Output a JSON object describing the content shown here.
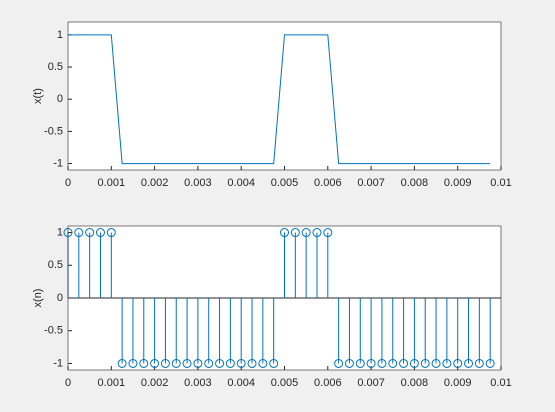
{
  "chart_data": [
    {
      "type": "line",
      "ylabel": "x(t)",
      "color": "#0072bd",
      "x": [
        0,
        0.00025,
        0.0005,
        0.00075,
        0.001,
        0.00125,
        0.0015,
        0.00175,
        0.002,
        0.00225,
        0.0025,
        0.00275,
        0.003,
        0.00325,
        0.0035,
        0.00375,
        0.004,
        0.00425,
        0.0045,
        0.00475,
        0.005,
        0.00525,
        0.0055,
        0.00575,
        0.006,
        0.00625,
        0.0065,
        0.00675,
        0.007,
        0.00725,
        0.0075,
        0.00775,
        0.008,
        0.00825,
        0.0085,
        0.00875,
        0.009,
        0.00925,
        0.0095,
        0.00975
      ],
      "values": [
        1,
        1,
        1,
        1,
        1,
        -1,
        -1,
        -1,
        -1,
        -1,
        -1,
        -1,
        -1,
        -1,
        -1,
        -1,
        -1,
        -1,
        -1,
        -1,
        1,
        1,
        1,
        1,
        1,
        -1,
        -1,
        -1,
        -1,
        -1,
        -1,
        -1,
        -1,
        -1,
        -1,
        -1,
        -1,
        -1,
        -1,
        -1
      ],
      "xlim": [
        0,
        0.01
      ],
      "xticks": [
        0,
        0.001,
        0.002,
        0.003,
        0.004,
        0.005,
        0.006,
        0.007,
        0.008,
        0.009,
        0.01
      ],
      "ylim": [
        -1.1,
        1.2
      ],
      "yticks": [
        -1,
        -0.5,
        0,
        0.5,
        1
      ]
    },
    {
      "type": "stem",
      "ylabel": "x(n)",
      "color": "#0072bd",
      "x": [
        0,
        0.00025,
        0.0005,
        0.00075,
        0.001,
        0.00125,
        0.0015,
        0.00175,
        0.002,
        0.00225,
        0.0025,
        0.00275,
        0.003,
        0.00325,
        0.0035,
        0.00375,
        0.004,
        0.00425,
        0.0045,
        0.00475,
        0.005,
        0.00525,
        0.0055,
        0.00575,
        0.006,
        0.00625,
        0.0065,
        0.00675,
        0.007,
        0.00725,
        0.0075,
        0.00775,
        0.008,
        0.00825,
        0.0085,
        0.00875,
        0.009,
        0.00925,
        0.0095,
        0.00975
      ],
      "values": [
        1,
        1,
        1,
        1,
        1,
        -1,
        -1,
        -1,
        -1,
        -1,
        -1,
        -1,
        -1,
        -1,
        -1,
        -1,
        -1,
        -1,
        -1,
        -1,
        1,
        1,
        1,
        1,
        1,
        -1,
        -1,
        -1,
        -1,
        -1,
        -1,
        -1,
        -1,
        -1,
        -1,
        -1,
        -1,
        -1,
        -1,
        -1
      ],
      "xlim": [
        0,
        0.01
      ],
      "xticks": [
        0,
        0.001,
        0.002,
        0.003,
        0.004,
        0.005,
        0.006,
        0.007,
        0.008,
        0.009,
        0.01
      ],
      "ylim": [
        -1.1,
        1.1
      ],
      "yticks": [
        -1,
        -0.5,
        0,
        0.5,
        1
      ]
    }
  ]
}
